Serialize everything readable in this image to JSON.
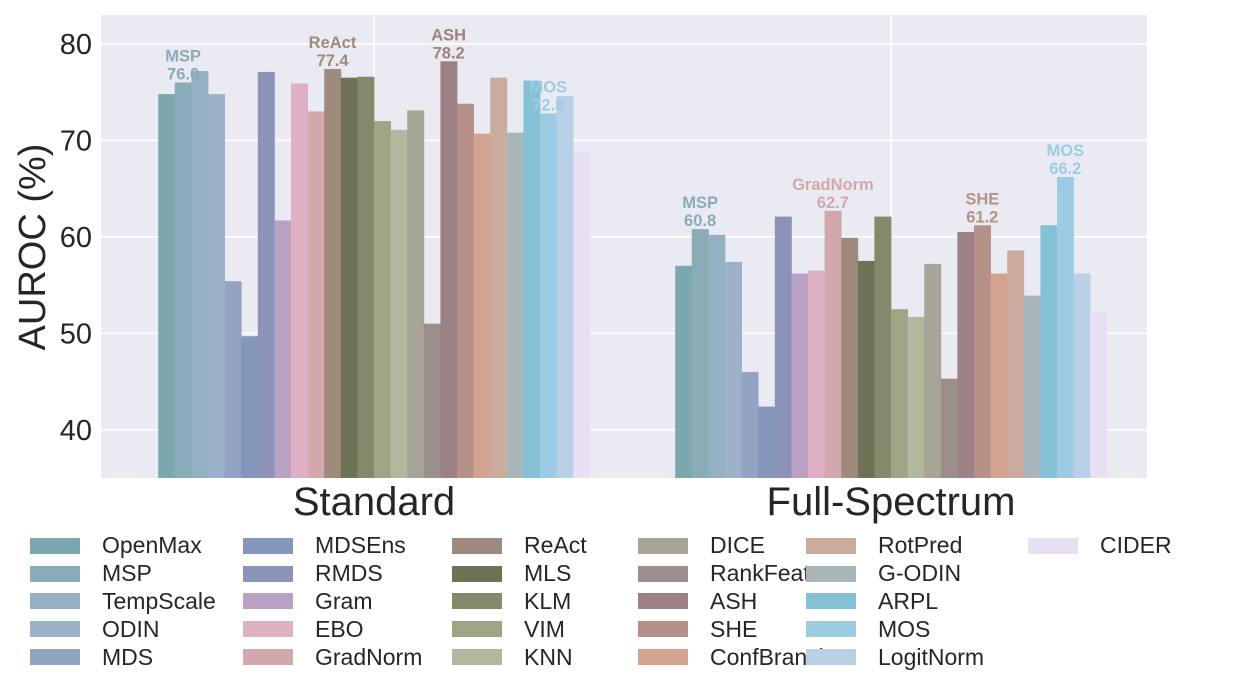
{
  "chart_data": {
    "type": "bar",
    "ylabel": "AUROC (%)",
    "ylim": [
      35,
      83
    ],
    "yticks": [
      40,
      50,
      60,
      70,
      80
    ],
    "grid": true,
    "legend_position": "bottom",
    "categories": [
      "Standard",
      "Full-Spectrum"
    ],
    "series": [
      {
        "name": "OpenMax",
        "color": "#7ba8ae",
        "values": [
          74.8,
          57.0
        ]
      },
      {
        "name": "MSP",
        "color": "#8aabb8",
        "values": [
          76.0,
          60.8
        ]
      },
      {
        "name": "TempScale",
        "color": "#95b0c2",
        "values": [
          77.2,
          60.2
        ]
      },
      {
        "name": "ODIN",
        "color": "#9cb2c9",
        "values": [
          74.8,
          57.4
        ]
      },
      {
        "name": "MDS",
        "color": "#93a3c2",
        "values": [
          55.4,
          46.0
        ]
      },
      {
        "name": "MDSEns",
        "color": "#8496ba",
        "values": [
          49.7,
          42.4
        ]
      },
      {
        "name": "RMDS",
        "color": "#8b93b8",
        "values": [
          77.1,
          62.1
        ]
      },
      {
        "name": "Gram",
        "color": "#b8a1c2",
        "values": [
          61.7,
          56.2
        ]
      },
      {
        "name": "EBO",
        "color": "#deb0c3",
        "values": [
          75.9,
          56.5
        ]
      },
      {
        "name": "GradNorm",
        "color": "#d2a8ad",
        "values": [
          73.0,
          62.7
        ]
      },
      {
        "name": "ReAct",
        "color": "#9e8b7e",
        "values": [
          77.4,
          59.9
        ]
      },
      {
        "name": "MLS",
        "color": "#6f7355",
        "values": [
          76.5,
          57.5
        ]
      },
      {
        "name": "KLM",
        "color": "#84896b",
        "values": [
          76.6,
          62.1
        ]
      },
      {
        "name": "VIM",
        "color": "#9ea585",
        "values": [
          72.0,
          52.5
        ]
      },
      {
        "name": "KNN",
        "color": "#b2b89e",
        "values": [
          71.1,
          51.7
        ]
      },
      {
        "name": "DICE",
        "color": "#a8a497",
        "values": [
          73.1,
          57.2
        ]
      },
      {
        "name": "RankFeat",
        "color": "#9a8f8b",
        "values": [
          51.0,
          45.3
        ]
      },
      {
        "name": "ASH",
        "color": "#9e8185",
        "values": [
          78.2,
          60.5
        ]
      },
      {
        "name": "SHE",
        "color": "#b59187",
        "values": [
          73.8,
          61.2
        ]
      },
      {
        "name": "ConfBranch",
        "color": "#d3a38f",
        "values": [
          70.7,
          56.2
        ]
      },
      {
        "name": "RotPred",
        "color": "#ccab9f",
        "values": [
          76.5,
          58.6
        ]
      },
      {
        "name": "G-ODIN",
        "color": "#a8b6ba",
        "values": [
          70.8,
          53.9
        ]
      },
      {
        "name": "ARPL",
        "color": "#85c1d4",
        "values": [
          76.2,
          61.2
        ]
      },
      {
        "name": "MOS",
        "color": "#9ccce2",
        "values": [
          72.8,
          66.2
        ]
      },
      {
        "name": "LogitNorm",
        "color": "#bad0e6",
        "values": [
          74.6,
          56.2
        ]
      },
      {
        "name": "CIDER",
        "color": "#e8dff3",
        "values": [
          68.9,
          52.2
        ]
      }
    ],
    "annotations": [
      {
        "category": 0,
        "series": "MSP",
        "name": "MSP",
        "value": "76.0"
      },
      {
        "category": 0,
        "series": "ReAct",
        "name": "ReAct",
        "value": "77.4"
      },
      {
        "category": 0,
        "series": "ASH",
        "name": "ASH",
        "value": "78.2"
      },
      {
        "category": 0,
        "series": "MOS",
        "name": "MOS",
        "value": "72.8"
      },
      {
        "category": 1,
        "series": "MSP",
        "name": "MSP",
        "value": "60.8"
      },
      {
        "category": 1,
        "series": "GradNorm",
        "name": "GradNorm",
        "value": "62.7"
      },
      {
        "category": 1,
        "series": "SHE",
        "name": "SHE",
        "value": "61.2"
      },
      {
        "category": 1,
        "series": "MOS",
        "name": "MOS",
        "value": "66.2"
      }
    ]
  }
}
